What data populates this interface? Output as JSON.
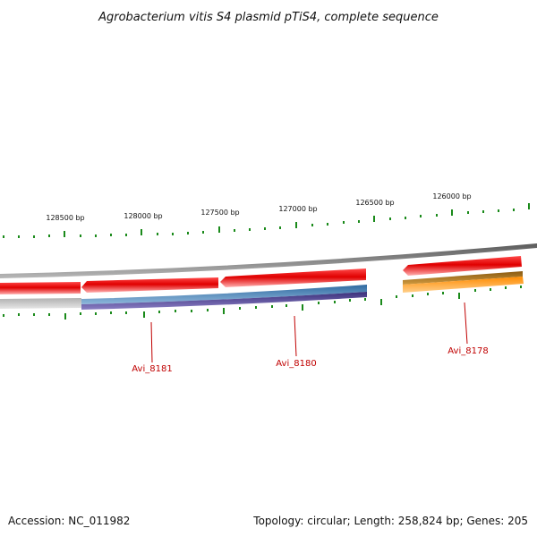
{
  "title": "Agrobacterium vitis S4 plasmid pTiS4, complete sequence",
  "scale_labels": [
    "128500 bp",
    "128000 bp",
    "127500 bp",
    "127000 bp",
    "126500 bp",
    "126000 bp"
  ],
  "gene_labels": [
    "Avi_8181",
    "Avi_8180",
    "Avi_8178"
  ],
  "footer": {
    "accession": "Accession: NC_011982",
    "topology": "Topology: circular; Length: 258,824 bp; Genes: 205"
  },
  "colors": {
    "backbone": "#7a7a7a",
    "cds": "#e00000",
    "gene_label": "#c00000",
    "ticks": "#1a8a1a",
    "blue_feature": "#4a7fb0",
    "purple_feature": "#4a3f8c",
    "orange_feature": "#ff9a1a",
    "gray_feature": "#c4c4c4"
  }
}
